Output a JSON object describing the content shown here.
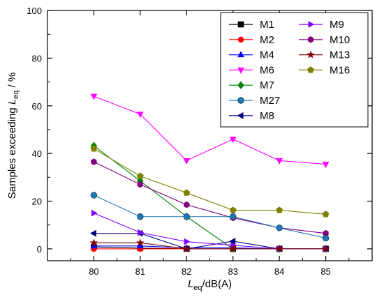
{
  "chart_data": {
    "type": "line",
    "xlabel": {
      "main": "L",
      "sub": "eq",
      "tail": "/dB(A)"
    },
    "ylabel": {
      "main": "Samples exceeding ",
      "italic": "L",
      "sub": "eq",
      "tail": " / %"
    },
    "x": [
      80,
      81,
      82,
      83,
      84,
      85
    ],
    "xlim": [
      79,
      86
    ],
    "ylim": [
      -5,
      100
    ],
    "xticks": [
      "80",
      "81",
      "82",
      "83",
      "84",
      "85"
    ],
    "yticks": [
      "0",
      "20",
      "40",
      "60",
      "80",
      "100"
    ],
    "legend_position": "top-right",
    "grid": false,
    "series": [
      {
        "name": "M1",
        "color": "#000000",
        "marker": "square",
        "values": [
          0.8,
          0.3,
          0.0,
          0.0,
          0.0,
          0.0
        ]
      },
      {
        "name": "M2",
        "color": "#ff0000",
        "marker": "circle",
        "values": [
          0.0,
          0.0,
          0.0,
          0.0,
          0.0,
          0.0
        ]
      },
      {
        "name": "M4",
        "color": "#0000ff",
        "marker": "triangle-up",
        "values": [
          1.2,
          1.2,
          0.4,
          0.4,
          0.0,
          0.0
        ]
      },
      {
        "name": "M6",
        "color": "#ff00ff",
        "marker": "triangle-down",
        "values": [
          64.0,
          56.5,
          37.0,
          46.0,
          37.0,
          35.5
        ]
      },
      {
        "name": "M7",
        "color": "#008000",
        "marker": "diamond",
        "values": [
          43.2,
          28.5,
          13.5,
          0.0,
          0.0,
          0.0
        ]
      },
      {
        "name": "M8",
        "color": "#000080",
        "marker": "triangle-left",
        "values": [
          6.5,
          6.5,
          0.0,
          3.2,
          0.0,
          0.0
        ]
      },
      {
        "name": "M9",
        "color": "#8000ff",
        "marker": "triangle-right",
        "values": [
          15.0,
          6.8,
          3.0,
          1.5,
          0.0,
          0.0
        ]
      },
      {
        "name": "M10",
        "color": "#800080",
        "marker": "hexagon",
        "values": [
          36.5,
          27.0,
          18.5,
          13.0,
          8.8,
          6.5
        ]
      },
      {
        "name": "M13",
        "color": "#800000",
        "marker": "star",
        "values": [
          2.5,
          2.5,
          0.0,
          0.0,
          0.0,
          0.0
        ]
      },
      {
        "name": "M16",
        "color": "#808000",
        "marker": "pentagon",
        "values": [
          42.0,
          30.5,
          23.5,
          16.2,
          16.2,
          14.5
        ]
      },
      {
        "name": "M27",
        "color": "#1f78b4",
        "marker": "sphere",
        "values": [
          22.5,
          13.5,
          13.5,
          13.5,
          8.8,
          4.5
        ]
      }
    ],
    "legend_columns": [
      [
        "M1",
        "M2",
        "M4",
        "M6",
        "M7",
        "M27",
        "M8"
      ],
      [
        "M9",
        "M10",
        "M13",
        "M16"
      ]
    ]
  }
}
